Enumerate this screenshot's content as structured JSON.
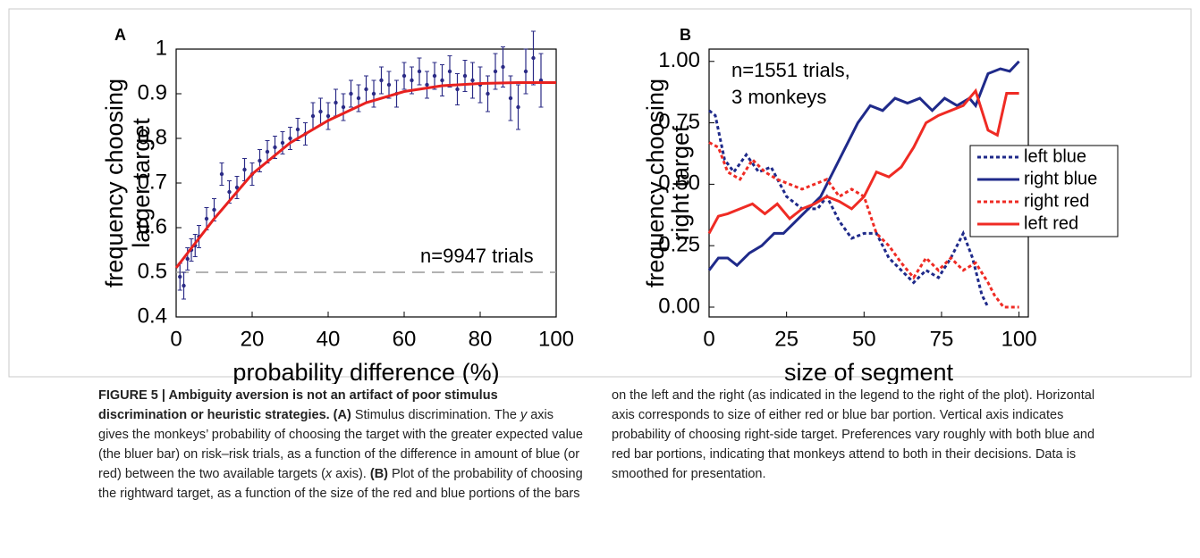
{
  "chart_data": [
    {
      "type": "scatter",
      "panel": "A",
      "xlabel": "probability difference (%)",
      "ylabel": [
        "frequency choosing",
        "larger target"
      ],
      "annotation": "n=9947 trials",
      "xlim": [
        0,
        100
      ],
      "ylim": [
        0.4,
        1
      ],
      "xticks": [
        0,
        20,
        40,
        60,
        80,
        100
      ],
      "yticks": [
        0.4,
        0.5,
        0.6,
        0.7,
        0.8,
        0.9,
        1
      ],
      "hline": 0.5,
      "series": [
        {
          "mode": "markers",
          "color": "#2b2b86",
          "x": [
            1,
            2,
            3,
            4,
            5,
            6,
            8,
            10,
            12,
            14,
            16,
            18,
            20,
            22,
            24,
            26,
            28,
            30,
            32,
            34,
            36,
            38,
            40,
            42,
            44,
            46,
            48,
            50,
            52,
            54,
            56,
            58,
            60,
            62,
            64,
            66,
            68,
            70,
            72,
            74,
            76,
            78,
            80,
            82,
            84,
            86,
            88,
            90,
            92,
            94,
            96
          ],
          "values": [
            0.49,
            0.47,
            0.53,
            0.55,
            0.56,
            0.58,
            0.62,
            0.64,
            0.72,
            0.68,
            0.69,
            0.73,
            0.72,
            0.75,
            0.77,
            0.78,
            0.79,
            0.8,
            0.82,
            0.81,
            0.85,
            0.86,
            0.85,
            0.88,
            0.87,
            0.9,
            0.89,
            0.91,
            0.9,
            0.93,
            0.92,
            0.9,
            0.94,
            0.93,
            0.95,
            0.92,
            0.94,
            0.93,
            0.95,
            0.91,
            0.94,
            0.93,
            0.92,
            0.9,
            0.95,
            0.96,
            0.89,
            0.87,
            0.95,
            0.98,
            0.93
          ],
          "errors": [
            0.03,
            0.03,
            0.025,
            0.025,
            0.025,
            0.025,
            0.025,
            0.025,
            0.025,
            0.025,
            0.025,
            0.025,
            0.025,
            0.025,
            0.025,
            0.025,
            0.025,
            0.025,
            0.025,
            0.025,
            0.03,
            0.03,
            0.03,
            0.03,
            0.03,
            0.03,
            0.03,
            0.03,
            0.03,
            0.03,
            0.03,
            0.03,
            0.03,
            0.03,
            0.03,
            0.03,
            0.03,
            0.035,
            0.035,
            0.035,
            0.035,
            0.04,
            0.04,
            0.04,
            0.04,
            0.045,
            0.05,
            0.05,
            0.05,
            0.06,
            0.06
          ]
        },
        {
          "mode": "line",
          "color": "#e8211f",
          "x": [
            0,
            10,
            20,
            30,
            40,
            50,
            60,
            70,
            80,
            90,
            100
          ],
          "values": [
            0.51,
            0.62,
            0.72,
            0.79,
            0.84,
            0.88,
            0.905,
            0.918,
            0.923,
            0.925,
            0.925
          ]
        }
      ]
    },
    {
      "type": "line",
      "panel": "B",
      "xlabel": "size of segment",
      "ylabel": [
        "frequency choosing",
        "right target"
      ],
      "annotation": [
        "n=1551 trials,",
        "3 monkeys"
      ],
      "xlim": [
        0,
        103
      ],
      "ylim": [
        -0.04,
        1.05
      ],
      "xticks": [
        0,
        25,
        50,
        75,
        100
      ],
      "yticks": [
        {
          "value": 0,
          "label": "0.00"
        },
        {
          "value": 0.25,
          "label": "0.25"
        },
        {
          "value": 0.5,
          "label": "0.50"
        },
        {
          "value": 0.75,
          "label": "0.75"
        },
        {
          "value": 1,
          "label": "1.00"
        }
      ],
      "series": [
        {
          "name": "left blue",
          "color": "#1f2a8a",
          "dash": "dotted",
          "x": [
            0,
            2,
            5,
            8,
            12,
            16,
            20,
            25,
            30,
            35,
            38,
            42,
            46,
            50,
            54,
            58,
            62,
            66,
            70,
            74,
            78,
            82,
            85,
            88,
            90
          ],
          "values": [
            0.8,
            0.78,
            0.6,
            0.55,
            0.62,
            0.55,
            0.57,
            0.45,
            0.4,
            0.4,
            0.45,
            0.35,
            0.28,
            0.3,
            0.3,
            0.2,
            0.15,
            0.1,
            0.15,
            0.12,
            0.2,
            0.3,
            0.2,
            0.05,
            0
          ]
        },
        {
          "name": "right blue",
          "color": "#1f2a8a",
          "dash": "solid",
          "x": [
            0,
            3,
            6,
            9,
            13,
            17,
            21,
            24,
            28,
            32,
            36,
            40,
            44,
            48,
            52,
            56,
            60,
            64,
            68,
            72,
            76,
            80,
            84,
            86,
            90,
            94,
            97,
            100
          ],
          "values": [
            0.15,
            0.2,
            0.2,
            0.17,
            0.22,
            0.25,
            0.3,
            0.3,
            0.35,
            0.4,
            0.45,
            0.55,
            0.65,
            0.75,
            0.82,
            0.8,
            0.85,
            0.83,
            0.85,
            0.8,
            0.85,
            0.82,
            0.85,
            0.82,
            0.95,
            0.97,
            0.96,
            1
          ]
        },
        {
          "name": "right red",
          "color": "#ef2b24",
          "dash": "dotted",
          "x": [
            0,
            3,
            6,
            10,
            14,
            18,
            22,
            26,
            30,
            34,
            38,
            42,
            46,
            50,
            54,
            58,
            62,
            66,
            70,
            74,
            78,
            82,
            86,
            90,
            92,
            95,
            100
          ],
          "values": [
            0.67,
            0.65,
            0.55,
            0.52,
            0.6,
            0.55,
            0.52,
            0.5,
            0.48,
            0.5,
            0.52,
            0.45,
            0.48,
            0.45,
            0.3,
            0.25,
            0.18,
            0.12,
            0.2,
            0.15,
            0.2,
            0.15,
            0.18,
            0.1,
            0.05,
            0,
            0
          ]
        },
        {
          "name": "left red",
          "color": "#ef2b24",
          "dash": "solid",
          "x": [
            0,
            3,
            6,
            10,
            14,
            18,
            22,
            26,
            30,
            34,
            38,
            42,
            46,
            50,
            54,
            58,
            62,
            66,
            70,
            74,
            78,
            82,
            86,
            90,
            93,
            96,
            100
          ],
          "values": [
            0.3,
            0.37,
            0.38,
            0.4,
            0.42,
            0.38,
            0.42,
            0.36,
            0.4,
            0.42,
            0.45,
            0.43,
            0.4,
            0.45,
            0.55,
            0.53,
            0.57,
            0.65,
            0.75,
            0.78,
            0.8,
            0.82,
            0.88,
            0.72,
            0.7,
            0.87,
            0.87
          ]
        }
      ]
    }
  ],
  "caption": [
    {
      "text": "FIGURE 5 | Ambiguity aversion is not an artifact of poor stimulus discrimination or heuristic strategies. (A)",
      "bold": true
    },
    {
      "text": " Stimulus discrimination. The ",
      "bold": false
    },
    {
      "text": "y",
      "bold": false,
      "italic": true
    },
    {
      "text": " axis gives the monkeys’ probability of choosing the target with the greater expected value (the bluer bar) on risk–risk trials, as a function of the difference in amount of blue (or red) between the two available targets (",
      "bold": false
    },
    {
      "text": "x",
      "bold": false,
      "italic": true
    },
    {
      "text": " axis). ",
      "bold": false
    },
    {
      "text": "(B)",
      "bold": true
    },
    {
      "text": " Plot of the probability of choosing the rightward target, as a function of the size of the red and blue portions of the bars on the left and the right (as indicated in the legend to the right of the plot). Horizontal axis corresponds to size of either red or blue bar portion. Vertical axis indicates probability of choosing right-side target. Preferences vary roughly with both blue and red bar portions, indicating that monkeys attend to both in their decisions. Data is smoothed for presentation.",
      "bold": false
    }
  ]
}
